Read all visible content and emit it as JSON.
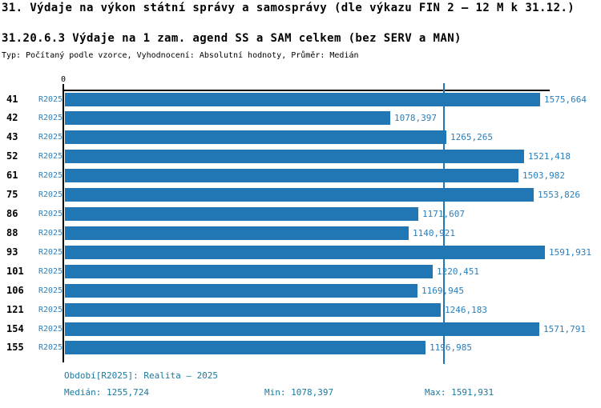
{
  "header": {
    "title": "31. Výdaje na výkon státní správy a samosprávy (dle výkazu FIN 2 – 12 M k 31.12.)",
    "subtitle": "31.20.6.3 Výdaje na 1 zam. agend SS a SAM celkem (bez SERV a MAN)",
    "meta": "Typ: Počítaný podle vzorce, Vyhodnocení: Absolutní hodnoty, Průměr: Medián"
  },
  "chart_data": {
    "type": "bar",
    "orientation": "horizontal",
    "title": "31.20.6.3 Výdaje na 1 zam. agend SS a SAM celkem (bez SERV a MAN)",
    "series_name": "R2025",
    "origin_label": "0",
    "xlim": [
      0,
      1605
    ],
    "median": 1255.724,
    "min": 1078.397,
    "max": 1591.931,
    "categories": [
      "41",
      "42",
      "43",
      "52",
      "61",
      "75",
      "86",
      "88",
      "93",
      "101",
      "106",
      "121",
      "154",
      "155"
    ],
    "values": [
      1575.664,
      1078.397,
      1265.265,
      1521.418,
      1503.982,
      1553.826,
      1171.607,
      1140.921,
      1591.931,
      1220.451,
      1169.945,
      1246.183,
      1571.791,
      1196.985
    ],
    "value_labels": [
      "1575,664",
      "1078,397",
      "1265,265",
      "1521,418",
      "1503,982",
      "1553,826",
      "1171,607",
      "1140,921",
      "1591,931",
      "1220,451",
      "1169,945",
      "1246,183",
      "1571,791",
      "1196,985"
    ],
    "colors": {
      "bar": "#2176b4",
      "median_line": "#2176b4",
      "value_text": "#2b7fbd",
      "footer_text": "#1a7aa0",
      "axis": "#000000"
    },
    "legend_position": "none",
    "grid": false
  },
  "footer": {
    "period": "Období[R2025]: Realita – 2025",
    "median": "Medián: 1255,724",
    "min": "Min: 1078,397",
    "max": "Max: 1591,931"
  }
}
